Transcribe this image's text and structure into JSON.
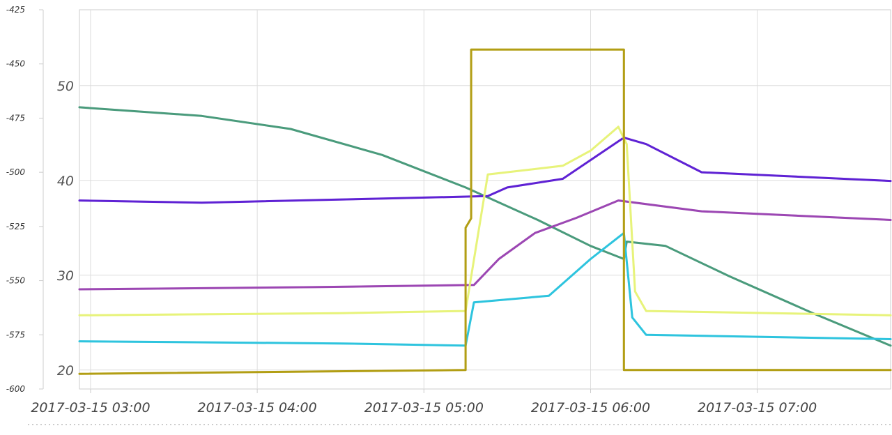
{
  "chart_data": {
    "type": "line",
    "title": "",
    "xlabel": "",
    "ylabel": "",
    "x_ticks": [
      "2017-03-15 03:00",
      "2017-03-15 04:00",
      "2017-03-15 05:00",
      "2017-03-15 06:00",
      "2017-03-15 07:00"
    ],
    "x_range": [
      "2017-03-15 02:56",
      "2017-03-15 07:48"
    ],
    "y_axes": [
      {
        "side": "left",
        "ticks": [
          "-425",
          "-450",
          "-475",
          "-500",
          "-525",
          "-550",
          "-575",
          "-600"
        ],
        "ylim": [
          -600,
          -425
        ]
      },
      {
        "side": "left-inner",
        "ticks": [
          "50",
          "40",
          "30",
          "20"
        ],
        "ylim": [
          18,
          58
        ]
      }
    ],
    "grid": true,
    "legend": "none",
    "colors": {
      "dark-green": "#4a9b7c",
      "purple": "#5f22d4",
      "magenta": "#9c47b3",
      "light-yellow": "#e7f37a",
      "cyan": "#2ec4de",
      "olive": "#b29e14"
    },
    "series": [
      {
        "color_key": "dark-green",
        "axis": 0,
        "points": [
          [
            "02:56",
            -470
          ],
          [
            "03:40",
            -474
          ],
          [
            "04:12",
            -480
          ],
          [
            "04:45",
            -492
          ],
          [
            "05:15",
            -507
          ],
          [
            "05:41",
            -522
          ],
          [
            "06:00",
            -534
          ],
          [
            "06:12",
            -540
          ],
          [
            "06:13",
            -532
          ],
          [
            "06:27",
            -534
          ],
          [
            "06:50",
            -548
          ],
          [
            "07:20",
            -565
          ],
          [
            "07:48",
            -580
          ]
        ]
      },
      {
        "color_key": "purple",
        "axis": 0,
        "points": [
          [
            "02:56",
            -513
          ],
          [
            "03:40",
            -514
          ],
          [
            "04:50",
            -512
          ],
          [
            "05:23",
            -511
          ],
          [
            "05:30",
            -507
          ],
          [
            "05:50",
            -503
          ],
          [
            "06:12",
            -484
          ],
          [
            "06:20",
            -487
          ],
          [
            "06:40",
            -500
          ],
          [
            "07:48",
            -504
          ]
        ]
      },
      {
        "color_key": "magenta",
        "axis": 0,
        "points": [
          [
            "02:56",
            -554
          ],
          [
            "04:20",
            -553
          ],
          [
            "05:18",
            -552
          ],
          [
            "05:27",
            -540
          ],
          [
            "05:40",
            -528
          ],
          [
            "05:55",
            -521
          ],
          [
            "06:10",
            -513
          ],
          [
            "06:40",
            -518
          ],
          [
            "07:48",
            -522
          ]
        ]
      },
      {
        "color_key": "light-yellow",
        "axis": 0,
        "points": [
          [
            "02:56",
            -566
          ],
          [
            "04:30",
            -565
          ],
          [
            "05:15",
            -564
          ],
          [
            "05:23",
            -501
          ],
          [
            "05:50",
            -497
          ],
          [
            "06:00",
            -490
          ],
          [
            "06:10",
            -479
          ],
          [
            "06:13",
            -487
          ],
          [
            "06:16",
            -555
          ],
          [
            "06:20",
            -564
          ],
          [
            "07:48",
            -566
          ]
        ]
      },
      {
        "color_key": "cyan",
        "axis": 0,
        "points": [
          [
            "02:56",
            -578
          ],
          [
            "04:30",
            -579
          ],
          [
            "05:15",
            -580
          ],
          [
            "05:18",
            -560
          ],
          [
            "05:45",
            -557
          ],
          [
            "06:00",
            -540
          ],
          [
            "06:12",
            -528
          ],
          [
            "06:15",
            -567
          ],
          [
            "06:20",
            -575
          ],
          [
            "07:48",
            -577
          ]
        ]
      },
      {
        "color_key": "olive",
        "axis": 1,
        "points": [
          [
            "02:56",
            19.6
          ],
          [
            "05:15",
            20
          ],
          [
            "05:15",
            35
          ],
          [
            "05:17",
            36
          ],
          [
            "05:17",
            53.8
          ],
          [
            "06:12",
            53.8
          ],
          [
            "06:12",
            20
          ],
          [
            "07:48",
            20
          ]
        ]
      }
    ]
  }
}
